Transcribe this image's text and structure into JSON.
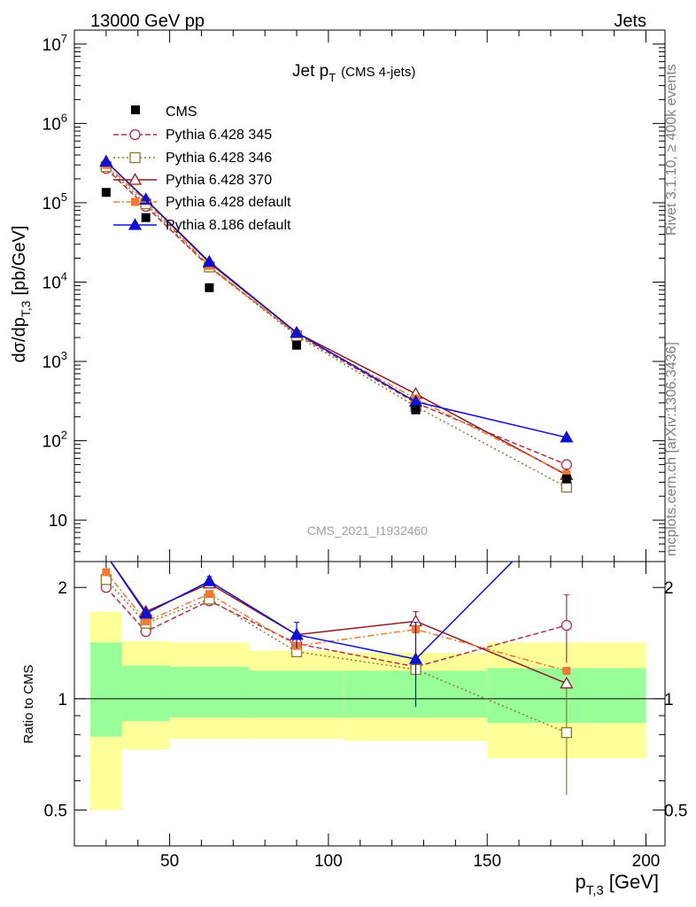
{
  "header": {
    "left": "13000 GeV pp",
    "right": "Jets"
  },
  "side_labels": {
    "rivet": "Rivet 3.1.10, ≥ 400k events",
    "mcplots": "mcplots.cern.ch [arXiv:1306.3436]"
  },
  "chart_data": {
    "type": "line",
    "title_main": "Jet p",
    "title_sub": "T",
    "title_extra": "(CMS 4-jets)",
    "analysis_id": "CMS_2021_I1932460",
    "xlabel_main": "p",
    "xlabel_sub": "T,3",
    "xlabel_unit": "[GeV]",
    "ylabel_main": "dσ/dp",
    "ylabel_sub": "T,3",
    "ylabel_unit": "[pb/GeV]",
    "ratio_ylabel": "Ratio to CMS",
    "log_y": true,
    "xlim": [
      20,
      206
    ],
    "ylim": [
      3,
      15000000
    ],
    "ratio_ylim": [
      0.4,
      2.35
    ],
    "x_ticks": [
      "50",
      "100",
      "150",
      "200"
    ],
    "y_tick_labels": [
      {
        "base": "10",
        "exp": "7"
      },
      {
        "base": "10",
        "exp": "6"
      },
      {
        "base": "10",
        "exp": "5"
      },
      {
        "base": "10",
        "exp": "4"
      },
      {
        "base": "10",
        "exp": "3"
      },
      {
        "base": "10",
        "exp": "2"
      },
      {
        "base": "10",
        "exp": ""
      }
    ],
    "y_tick_values": [
      10000000,
      1000000,
      100000,
      10000,
      1000,
      100,
      10
    ],
    "ratio_ticks": [
      "2",
      "1",
      "0.5"
    ],
    "ratio_tick_values": [
      2,
      1,
      0.5
    ],
    "bins": [
      {
        "lo": 25,
        "hi": 35,
        "x": 30,
        "band_inner": [
          0.79,
          1.42
        ],
        "band_outer": [
          0.5,
          1.72
        ]
      },
      {
        "lo": 35,
        "hi": 50,
        "x": 42.5,
        "band_inner": [
          0.87,
          1.23
        ],
        "band_outer": [
          0.73,
          1.43
        ]
      },
      {
        "lo": 50,
        "hi": 75,
        "x": 62.5,
        "band_inner": [
          0.89,
          1.22
        ],
        "band_outer": [
          0.78,
          1.42
        ]
      },
      {
        "lo": 75,
        "hi": 105,
        "x": 90,
        "band_inner": [
          0.89,
          1.19
        ],
        "band_outer": [
          0.78,
          1.35
        ]
      },
      {
        "lo": 105,
        "hi": 150,
        "x": 127.5,
        "band_inner": [
          0.89,
          1.19
        ],
        "band_outer": [
          0.77,
          1.33
        ]
      },
      {
        "lo": 150,
        "hi": 200,
        "x": 175,
        "band_inner": [
          0.86,
          1.21
        ],
        "band_outer": [
          0.69,
          1.42
        ]
      }
    ],
    "data": {
      "name": "CMS",
      "x": [
        30,
        42.5,
        62.5,
        90,
        127.5,
        175
      ],
      "y": [
        135000,
        65000,
        8500,
        1600,
        245,
        33
      ]
    },
    "series": [
      {
        "name": "Pythia 6.428 345",
        "color": "#b03048",
        "marker": "circle-open",
        "dash": "6,3",
        "x": [
          30,
          42.5,
          62.5,
          90,
          127.5,
          175
        ],
        "y": [
          270000,
          90000,
          15500,
          2200,
          300,
          50
        ],
        "ratio": [
          2.0,
          1.52,
          1.84,
          1.41,
          1.22,
          1.58
        ],
        "ratio_err": [
          0,
          0,
          0.03,
          0.05,
          0,
          0.33
        ]
      },
      {
        "name": "Pythia 6.428 346",
        "color": "#8c7a2c",
        "marker": "square-open",
        "dash": "2,3",
        "x": [
          30,
          42.5,
          62.5,
          90,
          127.5,
          175
        ],
        "y": [
          285000,
          97000,
          15500,
          2100,
          270,
          26
        ],
        "ratio": [
          2.1,
          1.6,
          1.86,
          1.34,
          1.2,
          0.81
        ],
        "ratio_err": [
          0,
          0,
          0,
          0,
          0,
          0.26
        ]
      },
      {
        "name": "Pythia 6.428 370",
        "color": "#8e1c22",
        "marker": "triangle-open",
        "dash": "",
        "x": [
          30,
          42.5,
          62.5,
          90,
          127.5,
          175
        ],
        "y": [
          330000,
          110000,
          17500,
          2300,
          390,
          37
        ],
        "ratio": [
          2.45,
          1.72,
          2.05,
          1.49,
          1.62,
          1.1
        ],
        "ratio_err": [
          0,
          0,
          0,
          0,
          0.1,
          0
        ]
      },
      {
        "name": "Pythia 6.428 default",
        "color": "#f07830",
        "marker": "square-filled",
        "dash": "7,3,2,3",
        "x": [
          30,
          42.5,
          62.5,
          90,
          127.5,
          175
        ],
        "y": [
          300000,
          105000,
          16000,
          2200,
          340,
          38
        ],
        "ratio": [
          2.2,
          1.62,
          1.92,
          1.39,
          1.54,
          1.19
        ],
        "ratio_err": [
          0,
          0,
          0,
          0,
          0,
          0
        ]
      },
      {
        "name": "Pythia 8.186 default",
        "color": "#1010d0",
        "marker": "triangle-filled",
        "dash": "",
        "x": [
          30,
          42.5,
          62.5,
          90,
          127.5,
          175
        ],
        "y": [
          330000,
          110000,
          18000,
          2300,
          310,
          110
        ],
        "ratio": [
          2.45,
          1.7,
          2.08,
          1.49,
          1.28,
          3.3
        ],
        "ratio_err": [
          0,
          0,
          0.06,
          0.12,
          0.33,
          0
        ]
      }
    ]
  }
}
